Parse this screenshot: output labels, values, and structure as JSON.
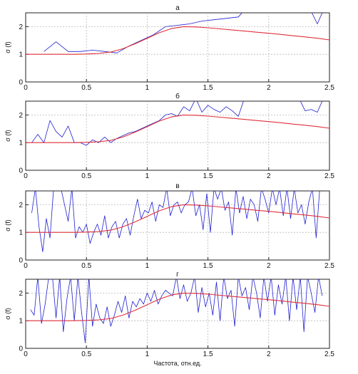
{
  "chart_data": [
    {
      "type": "line",
      "title": "а",
      "xlabel": "",
      "ylabel": "σ (f)",
      "xlim": [
        0,
        2.5
      ],
      "ylim": [
        0,
        2.5
      ],
      "xticks": [
        "0",
        "0.5",
        "1",
        "1.5",
        "2",
        "2.5"
      ],
      "yticks": [
        "0",
        "1",
        "2"
      ],
      "grid": true,
      "series": [
        {
          "color": "#1f1fcf",
          "x": [
            0.15,
            0.25,
            0.35,
            0.45,
            0.55,
            0.65,
            0.75,
            0.85,
            0.95,
            1.05,
            1.15,
            1.25,
            1.35,
            1.45,
            1.55,
            1.65,
            1.75,
            1.8,
            1.85,
            1.9,
            2.25,
            2.35,
            2.4,
            2.45
          ],
          "y": [
            1.1,
            1.45,
            1.1,
            1.1,
            1.15,
            1.1,
            1.05,
            1.3,
            1.5,
            1.7,
            2.0,
            2.05,
            2.1,
            2.2,
            2.25,
            2.3,
            2.35,
            2.6,
            2.6,
            2.6,
            2.6,
            2.55,
            2.1,
            2.6
          ]
        },
        {
          "color": "#e0303a",
          "x": [
            0,
            0.1,
            0.2,
            0.3,
            0.4,
            0.5,
            0.6,
            0.7,
            0.8,
            0.9,
            1.0,
            1.1,
            1.2,
            1.3,
            1.4,
            1.5,
            1.6,
            1.7,
            1.8,
            1.9,
            2.0,
            2.1,
            2.2,
            2.3,
            2.4,
            2.5
          ],
          "y": [
            1.0,
            1.0,
            1.0,
            1.0,
            1.0,
            1.01,
            1.03,
            1.08,
            1.2,
            1.38,
            1.58,
            1.78,
            1.93,
            2.0,
            1.99,
            1.96,
            1.92,
            1.88,
            1.84,
            1.8,
            1.76,
            1.72,
            1.67,
            1.63,
            1.58,
            1.52
          ]
        }
      ]
    },
    {
      "type": "line",
      "title": "б",
      "xlabel": "",
      "ylabel": "σ (f)",
      "xlim": [
        0,
        2.5
      ],
      "ylim": [
        0,
        2.5
      ],
      "xticks": [
        "0",
        "0.5",
        "1",
        "1.5",
        "2",
        "2.5"
      ],
      "yticks": [
        "0",
        "1",
        "2"
      ],
      "grid": true,
      "series": [
        {
          "color": "#1f1fcf",
          "x": [
            0.05,
            0.1,
            0.15,
            0.2,
            0.25,
            0.3,
            0.35,
            0.4,
            0.45,
            0.5,
            0.55,
            0.6,
            0.65,
            0.7,
            0.75,
            0.8,
            0.85,
            0.9,
            0.95,
            1.0,
            1.05,
            1.1,
            1.15,
            1.2,
            1.25,
            1.3,
            1.35,
            1.4,
            1.45,
            1.5,
            1.55,
            1.6,
            1.65,
            1.7,
            1.75,
            1.8,
            1.85,
            2.2,
            2.25,
            2.3,
            2.35,
            2.4,
            2.45
          ],
          "y": [
            1.0,
            1.3,
            1.0,
            1.8,
            1.4,
            1.2,
            1.6,
            1.0,
            1.0,
            0.9,
            1.1,
            1.0,
            1.2,
            1.0,
            1.15,
            1.25,
            1.35,
            1.4,
            1.5,
            1.6,
            1.7,
            1.8,
            2.0,
            2.05,
            1.95,
            2.3,
            2.15,
            2.6,
            2.1,
            2.35,
            2.2,
            2.1,
            2.3,
            2.15,
            1.95,
            2.6,
            2.6,
            2.6,
            2.6,
            2.15,
            2.2,
            2.1,
            2.6
          ]
        },
        {
          "color": "#e0303a",
          "x": [
            0,
            0.1,
            0.2,
            0.3,
            0.4,
            0.5,
            0.6,
            0.7,
            0.8,
            0.9,
            1.0,
            1.1,
            1.2,
            1.3,
            1.4,
            1.5,
            1.6,
            1.7,
            1.8,
            1.9,
            2.0,
            2.1,
            2.2,
            2.3,
            2.4,
            2.5
          ],
          "y": [
            1.0,
            1.0,
            1.0,
            1.0,
            1.0,
            1.01,
            1.03,
            1.08,
            1.2,
            1.38,
            1.58,
            1.78,
            1.93,
            2.0,
            1.99,
            1.96,
            1.92,
            1.88,
            1.84,
            1.8,
            1.76,
            1.72,
            1.67,
            1.63,
            1.58,
            1.52
          ]
        }
      ]
    },
    {
      "type": "line",
      "title": "в",
      "xlabel": "",
      "ylabel": "σ (f)",
      "xlim": [
        0,
        2.5
      ],
      "ylim": [
        0,
        2.5
      ],
      "xticks": [
        "0",
        "0.5",
        "1",
        "1.5",
        "2",
        "2.5"
      ],
      "yticks": [
        "0",
        "1",
        "2"
      ],
      "grid": true,
      "series": [
        {
          "color": "#1f1fcf",
          "x": [
            0.05,
            0.08,
            0.11,
            0.14,
            0.17,
            0.2,
            0.23,
            0.26,
            0.29,
            0.32,
            0.35,
            0.38,
            0.41,
            0.44,
            0.47,
            0.5,
            0.53,
            0.56,
            0.59,
            0.62,
            0.65,
            0.68,
            0.71,
            0.74,
            0.77,
            0.8,
            0.83,
            0.86,
            0.89,
            0.92,
            0.95,
            0.98,
            1.01,
            1.04,
            1.07,
            1.1,
            1.13,
            1.16,
            1.19,
            1.22,
            1.25,
            1.28,
            1.31,
            1.34,
            1.37,
            1.4,
            1.43,
            1.46,
            1.49,
            1.52,
            1.55,
            1.58,
            1.61,
            1.64,
            1.67,
            1.7,
            1.73,
            1.76,
            1.79,
            1.82,
            1.85,
            1.88,
            1.91,
            1.94,
            1.97,
            2.0,
            2.03,
            2.06,
            2.09,
            2.12,
            2.15,
            2.18,
            2.21,
            2.24,
            2.27,
            2.3,
            2.33,
            2.36,
            2.39,
            2.42,
            2.45
          ],
          "y": [
            1.7,
            2.6,
            1.2,
            0.3,
            1.5,
            0.8,
            2.6,
            2.6,
            2.6,
            2.0,
            1.4,
            2.6,
            0.8,
            1.2,
            1.0,
            1.3,
            0.6,
            1.0,
            1.3,
            0.9,
            1.6,
            0.8,
            1.2,
            1.4,
            0.8,
            1.3,
            1.5,
            0.9,
            1.6,
            2.2,
            1.5,
            1.8,
            1.7,
            2.1,
            1.4,
            2.0,
            1.9,
            2.6,
            1.6,
            2.0,
            2.1,
            1.7,
            2.0,
            2.1,
            2.6,
            1.6,
            2.0,
            1.1,
            2.4,
            1.0,
            2.6,
            2.2,
            2.6,
            1.8,
            2.1,
            0.9,
            2.6,
            1.7,
            2.3,
            1.5,
            2.2,
            2.0,
            1.4,
            2.6,
            2.2,
            1.7,
            2.6,
            2.0,
            2.6,
            1.6,
            2.6,
            1.5,
            2.6,
            1.7,
            2.0,
            1.3,
            2.1,
            2.6,
            0.8,
            2.6,
            2.6
          ]
        },
        {
          "color": "#e0303a",
          "x": [
            0,
            0.1,
            0.2,
            0.3,
            0.4,
            0.5,
            0.6,
            0.7,
            0.8,
            0.9,
            1.0,
            1.1,
            1.2,
            1.3,
            1.4,
            1.5,
            1.6,
            1.7,
            1.8,
            1.9,
            2.0,
            2.1,
            2.2,
            2.3,
            2.4,
            2.5
          ],
          "y": [
            1.0,
            1.0,
            1.0,
            1.0,
            1.0,
            1.01,
            1.03,
            1.08,
            1.2,
            1.38,
            1.58,
            1.78,
            1.93,
            2.0,
            1.99,
            1.96,
            1.92,
            1.88,
            1.84,
            1.8,
            1.76,
            1.72,
            1.67,
            1.63,
            1.58,
            1.52
          ]
        }
      ]
    },
    {
      "type": "line",
      "title": "г",
      "xlabel": "Частота, отн.ед.",
      "ylabel": "σ (f)",
      "xlim": [
        0,
        2.5
      ],
      "ylim": [
        0,
        2.5
      ],
      "xticks": [
        "0",
        "0.5",
        "1",
        "1.5",
        "2",
        "2.5"
      ],
      "yticks": [
        "0",
        "1",
        "2"
      ],
      "grid": true,
      "series": [
        {
          "color": "#1f1fcf",
          "x": [
            0.04,
            0.07,
            0.1,
            0.13,
            0.16,
            0.19,
            0.22,
            0.25,
            0.28,
            0.31,
            0.34,
            0.37,
            0.4,
            0.43,
            0.46,
            0.49,
            0.52,
            0.55,
            0.58,
            0.61,
            0.64,
            0.67,
            0.7,
            0.73,
            0.76,
            0.79,
            0.82,
            0.85,
            0.88,
            0.91,
            0.94,
            0.97,
            1.0,
            1.03,
            1.06,
            1.09,
            1.12,
            1.15,
            1.18,
            1.21,
            1.24,
            1.27,
            1.3,
            1.33,
            1.36,
            1.39,
            1.42,
            1.45,
            1.48,
            1.51,
            1.54,
            1.57,
            1.6,
            1.63,
            1.66,
            1.69,
            1.72,
            1.75,
            1.78,
            1.81,
            1.84,
            1.87,
            1.9,
            1.93,
            1.96,
            1.99,
            2.02,
            2.05,
            2.08,
            2.11,
            2.14,
            2.17,
            2.2,
            2.23,
            2.26,
            2.29,
            2.32,
            2.35,
            2.38,
            2.41,
            2.44
          ],
          "y": [
            1.4,
            1.2,
            2.6,
            0.9,
            1.6,
            2.6,
            2.6,
            1.1,
            2.6,
            0.6,
            1.8,
            2.6,
            1.0,
            2.6,
            1.3,
            0.2,
            2.6,
            0.8,
            1.6,
            1.1,
            0.9,
            1.5,
            0.8,
            1.2,
            1.7,
            1.3,
            1.9,
            1.1,
            1.7,
            1.5,
            1.8,
            1.6,
            2.0,
            1.7,
            2.1,
            1.6,
            1.9,
            2.1,
            2.0,
            1.9,
            2.6,
            1.8,
            2.3,
            1.7,
            2.0,
            2.6,
            1.3,
            2.2,
            1.5,
            2.0,
            1.2,
            2.4,
            1.0,
            2.6,
            1.8,
            2.1,
            0.8,
            2.6,
            1.9,
            2.2,
            1.4,
            2.6,
            2.0,
            1.1,
            2.6,
            1.7,
            2.6,
            1.2,
            2.3,
            1.6,
            2.6,
            1.0,
            2.6,
            1.4,
            2.6,
            0.6,
            2.6,
            2.0,
            1.3,
            2.6,
            1.9
          ]
        },
        {
          "color": "#e0303a",
          "x": [
            0,
            0.1,
            0.2,
            0.3,
            0.4,
            0.5,
            0.6,
            0.7,
            0.8,
            0.9,
            1.0,
            1.1,
            1.2,
            1.3,
            1.4,
            1.5,
            1.6,
            1.7,
            1.8,
            1.9,
            2.0,
            2.1,
            2.2,
            2.3,
            2.4,
            2.5
          ],
          "y": [
            1.0,
            1.0,
            1.0,
            1.0,
            1.0,
            1.01,
            1.03,
            1.08,
            1.2,
            1.38,
            1.58,
            1.78,
            1.93,
            2.0,
            1.99,
            1.96,
            1.92,
            1.88,
            1.84,
            1.8,
            1.76,
            1.72,
            1.67,
            1.63,
            1.58,
            1.52
          ]
        }
      ]
    }
  ]
}
